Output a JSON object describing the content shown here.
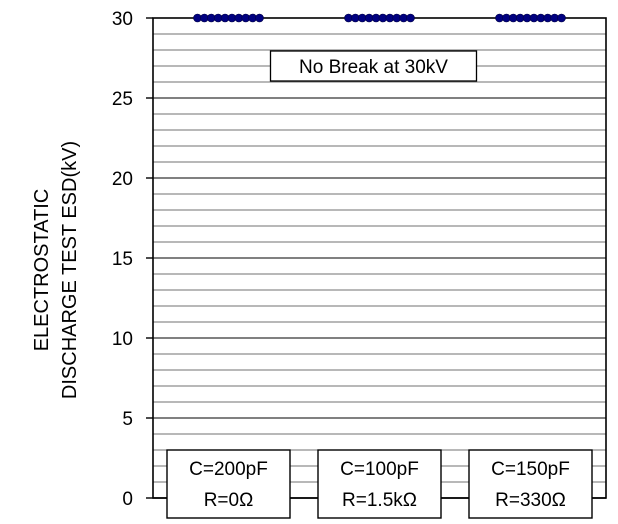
{
  "chart_data": {
    "type": "scatter",
    "ylabel": [
      "ELECTROSTATIC",
      "DISCHARGE TEST ESD(kV)"
    ],
    "ylim": [
      0,
      30
    ],
    "y_ticks": [
      0,
      5,
      10,
      15,
      20,
      25,
      30
    ],
    "minor_grid_step": 1,
    "grid": true,
    "categories": [
      {
        "line1": "C=200pF",
        "line2": "R=0Ω"
      },
      {
        "line1": "C=100pF",
        "line2": "R=1.5kΩ"
      },
      {
        "line1": "C=150pF",
        "line2": "R=330Ω"
      }
    ],
    "series": [
      {
        "values": [
          30,
          30,
          30
        ],
        "color": "#000080",
        "points_per_category": 10
      }
    ],
    "annotation": "No Break at 30kV"
  }
}
